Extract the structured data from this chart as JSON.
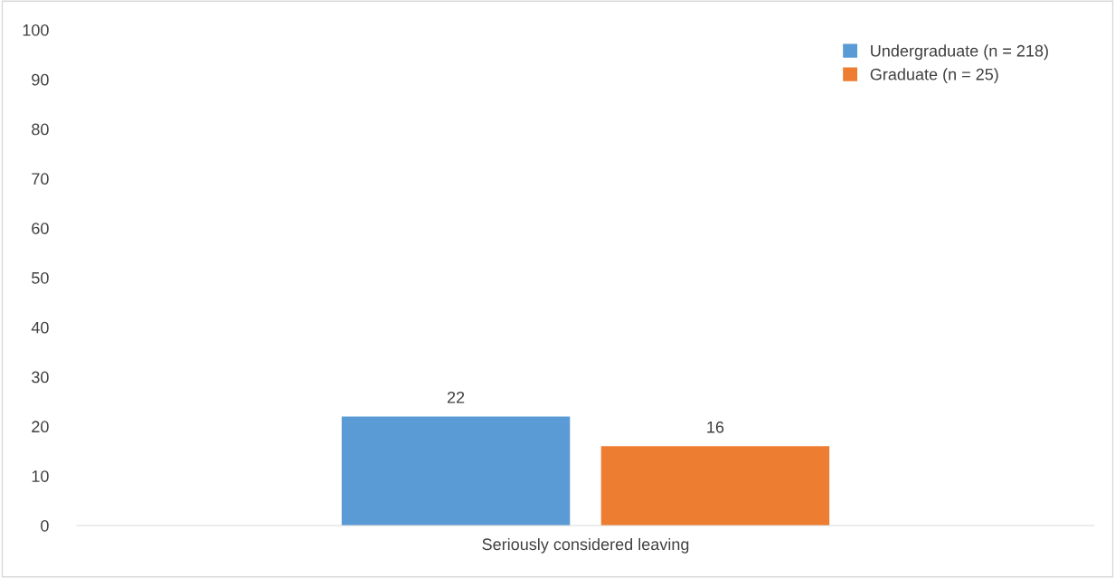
{
  "chart_data": {
    "type": "bar",
    "categories": [
      "Seriously considered leaving"
    ],
    "series": [
      {
        "name": "Undergraduate (n = 218)",
        "color": "#5b9bd5",
        "values": [
          22
        ]
      },
      {
        "name": "Graduate (n = 25)",
        "color": "#ed7d31",
        "values": [
          16
        ]
      }
    ],
    "ylim": [
      0,
      100
    ],
    "yticks": [
      0,
      10,
      20,
      30,
      40,
      50,
      60,
      70,
      80,
      90,
      100
    ],
    "data_labels": true,
    "grid": false,
    "legend": "top right"
  }
}
